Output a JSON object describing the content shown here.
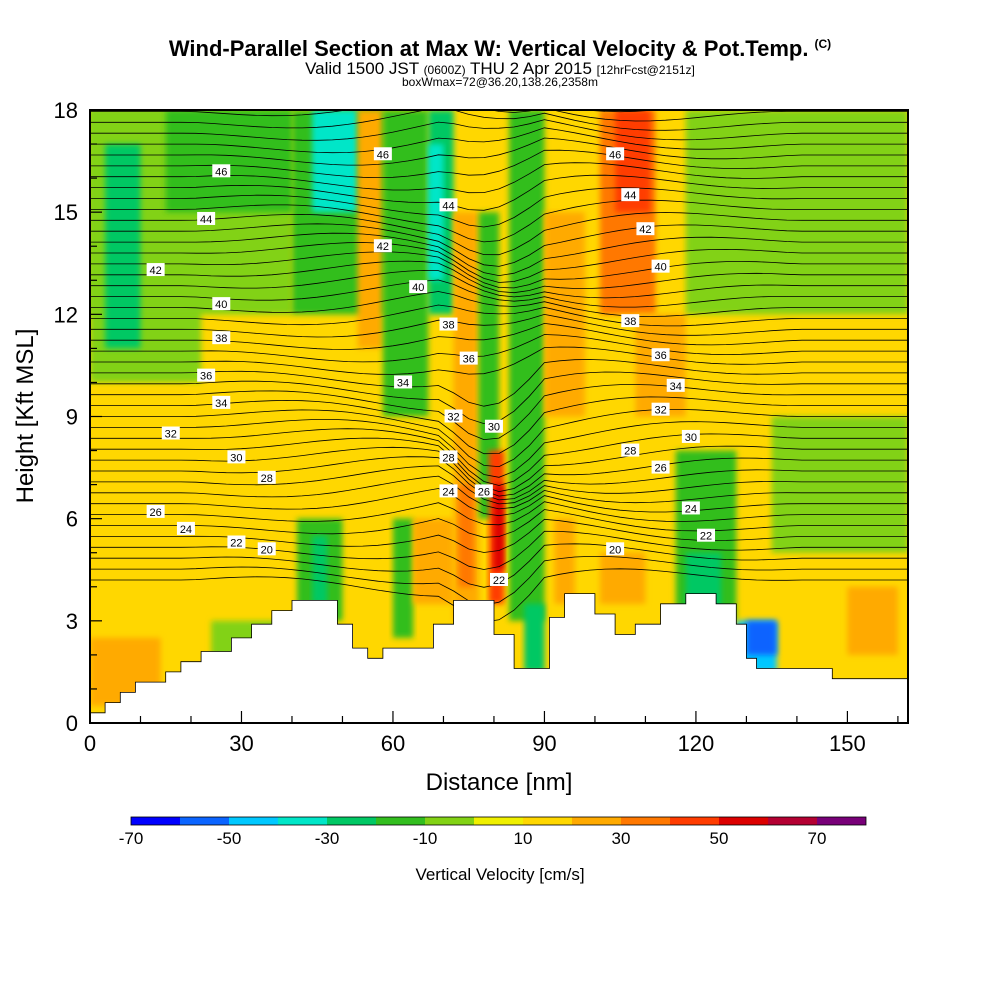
{
  "header": {
    "title": "Wind-Parallel Section at Max W: Vertical Velocity & Pot.Temp.",
    "title_tag": "(C)",
    "valid_time": "Valid 1500 JST",
    "valid_zulu": "(0600Z)",
    "valid_date": "THU 2 Apr 2015",
    "forecast_info": "[12hrFcst@2151z]",
    "box_info": "boxWmax=72@36.20,138.26,2358m"
  },
  "chart_data": {
    "type": "heatmap",
    "xlabel": "Distance [nm]",
    "ylabel": "Height [Kft MSL]",
    "xlim": [
      0,
      162
    ],
    "ylim": [
      0,
      18
    ],
    "x_ticks": [
      0,
      30,
      60,
      90,
      120,
      150
    ],
    "y_ticks": [
      0,
      3,
      6,
      9,
      12,
      15,
      18
    ],
    "colorbar": {
      "title": "Vertical Velocity [cm/s]",
      "tick_labels": [
        -70,
        -50,
        -30,
        -10,
        10,
        30,
        50,
        70
      ],
      "levels": [
        -70,
        -60,
        -50,
        -40,
        -30,
        -20,
        -10,
        0,
        10,
        20,
        30,
        40,
        50,
        60,
        70,
        80
      ],
      "colors": [
        "#0000ff",
        "#0a64ff",
        "#00c8ff",
        "#00e6c8",
        "#00c864",
        "#32be1e",
        "#82d214",
        "#f0f000",
        "#ffd700",
        "#ffaa00",
        "#ff7800",
        "#ff3c00",
        "#dc0000",
        "#b40032",
        "#780078"
      ]
    },
    "w_regions": [
      {
        "x": [
          0,
          162
        ],
        "y": [
          0,
          18
        ],
        "w": 15
      },
      {
        "x": [
          0,
          22
        ],
        "y": [
          10,
          18
        ],
        "w": -5
      },
      {
        "x": [
          0,
          40
        ],
        "y": [
          12,
          18
        ],
        "w": -5
      },
      {
        "x": [
          15,
          40
        ],
        "y": [
          15,
          18
        ],
        "w": -15
      },
      {
        "x": [
          3,
          10
        ],
        "y": [
          11,
          17
        ],
        "w": -25
      },
      {
        "x": [
          0,
          14
        ],
        "y": [
          0.5,
          2.5
        ],
        "w": 25
      },
      {
        "x": [
          24,
          40
        ],
        "y": [
          0,
          3
        ],
        "w": -5
      },
      {
        "x": [
          40,
          58
        ],
        "y": [
          12,
          18
        ],
        "w": -15
      },
      {
        "x": [
          44,
          53
        ],
        "y": [
          15,
          18
        ],
        "w": -35
      },
      {
        "x": [
          41,
          50
        ],
        "y": [
          3,
          6
        ],
        "w": -15
      },
      {
        "x": [
          44,
          47
        ],
        "y": [
          3.5,
          5.5
        ],
        "w": -25
      },
      {
        "x": [
          53,
          58
        ],
        "y": [
          11,
          18
        ],
        "w": 25
      },
      {
        "x": [
          58,
          67
        ],
        "y": [
          9,
          18
        ],
        "w": -15
      },
      {
        "x": [
          60,
          64
        ],
        "y": [
          2.5,
          6
        ],
        "w": -15
      },
      {
        "x": [
          64,
          72
        ],
        "y": [
          3.5,
          6
        ],
        "w": 25
      },
      {
        "x": [
          67,
          72
        ],
        "y": [
          12,
          18
        ],
        "w": -25
      },
      {
        "x": [
          67,
          70
        ],
        "y": [
          13,
          17
        ],
        "w": -35
      },
      {
        "x": [
          72,
          77
        ],
        "y": [
          3,
          15
        ],
        "w": 25
      },
      {
        "x": [
          73,
          76
        ],
        "y": [
          4,
          7
        ],
        "w": 35
      },
      {
        "x": [
          77,
          81
        ],
        "y": [
          6,
          15
        ],
        "w": -15
      },
      {
        "x": [
          79,
          82
        ],
        "y": [
          3.5,
          8
        ],
        "w": 45
      },
      {
        "x": [
          80,
          82
        ],
        "y": [
          4.5,
          7
        ],
        "w": 55
      },
      {
        "x": [
          83,
          90
        ],
        "y": [
          3,
          18
        ],
        "w": -15
      },
      {
        "x": [
          86,
          90
        ],
        "y": [
          1.5,
          3.5
        ],
        "w": -25
      },
      {
        "x": [
          90,
          98
        ],
        "y": [
          9,
          15
        ],
        "w": 25
      },
      {
        "x": [
          92,
          96
        ],
        "y": [
          3.5,
          6
        ],
        "w": 25
      },
      {
        "x": [
          101,
          112
        ],
        "y": [
          12,
          18
        ],
        "w": 35
      },
      {
        "x": [
          104,
          111
        ],
        "y": [
          15,
          18
        ],
        "w": 45
      },
      {
        "x": [
          101,
          110
        ],
        "y": [
          3.5,
          5
        ],
        "w": 25
      },
      {
        "x": [
          108,
          118
        ],
        "y": [
          9,
          12
        ],
        "w": 25
      },
      {
        "x": [
          116,
          128
        ],
        "y": [
          3,
          8
        ],
        "w": -15
      },
      {
        "x": [
          118,
          125
        ],
        "y": [
          3,
          5
        ],
        "w": -25
      },
      {
        "x": [
          128,
          136
        ],
        "y": [
          1.5,
          3
        ],
        "w": -45
      },
      {
        "x": [
          130,
          136
        ],
        "y": [
          2,
          3
        ],
        "w": -55
      },
      {
        "x": [
          118,
          162
        ],
        "y": [
          12,
          18
        ],
        "w": -5
      },
      {
        "x": [
          135,
          162
        ],
        "y": [
          5,
          9
        ],
        "w": -5
      },
      {
        "x": [
          150,
          160
        ],
        "y": [
          2,
          4
        ],
        "w": 25
      }
    ],
    "terrain": [
      {
        "x": 0,
        "top": 0.3
      },
      {
        "x": 3,
        "top": 0.6
      },
      {
        "x": 6,
        "top": 0.9
      },
      {
        "x": 9,
        "top": 1.2
      },
      {
        "x": 15,
        "top": 1.5
      },
      {
        "x": 18,
        "top": 1.8
      },
      {
        "x": 22,
        "top": 2.1
      },
      {
        "x": 28,
        "top": 2.5
      },
      {
        "x": 32,
        "top": 2.9
      },
      {
        "x": 36,
        "top": 3.3
      },
      {
        "x": 40,
        "top": 3.6
      },
      {
        "x": 49,
        "top": 2.9
      },
      {
        "x": 52,
        "top": 2.2
      },
      {
        "x": 55,
        "top": 1.9
      },
      {
        "x": 58,
        "top": 2.2
      },
      {
        "x": 68,
        "top": 2.9
      },
      {
        "x": 72,
        "top": 3.6
      },
      {
        "x": 80,
        "top": 2.6
      },
      {
        "x": 84,
        "top": 1.6
      },
      {
        "x": 91,
        "top": 3.1
      },
      {
        "x": 94,
        "top": 3.8
      },
      {
        "x": 100,
        "top": 3.2
      },
      {
        "x": 104,
        "top": 2.6
      },
      {
        "x": 108,
        "top": 2.9
      },
      {
        "x": 113,
        "top": 3.5
      },
      {
        "x": 118,
        "top": 3.8
      },
      {
        "x": 124,
        "top": 3.5
      },
      {
        "x": 128,
        "top": 2.9
      },
      {
        "x": 130,
        "top": 1.9
      },
      {
        "x": 132,
        "top": 1.6
      },
      {
        "x": 140,
        "top": 1.6
      },
      {
        "x": 147,
        "top": 1.3
      },
      {
        "x": 162,
        "top": 1.3
      }
    ],
    "theta_labels": [
      {
        "text": "46",
        "x": 26,
        "y": 16.2
      },
      {
        "text": "44",
        "x": 23,
        "y": 14.8
      },
      {
        "text": "42",
        "x": 13,
        "y": 13.3
      },
      {
        "text": "40",
        "x": 26,
        "y": 12.3
      },
      {
        "text": "38",
        "x": 26,
        "y": 11.3
      },
      {
        "text": "36",
        "x": 23,
        "y": 10.2
      },
      {
        "text": "34",
        "x": 26,
        "y": 9.4
      },
      {
        "text": "32",
        "x": 16,
        "y": 8.5
      },
      {
        "text": "30",
        "x": 29,
        "y": 7.8
      },
      {
        "text": "28",
        "x": 35,
        "y": 7.2
      },
      {
        "text": "26",
        "x": 13,
        "y": 6.2
      },
      {
        "text": "24",
        "x": 19,
        "y": 5.7
      },
      {
        "text": "22",
        "x": 29,
        "y": 5.3
      },
      {
        "text": "20",
        "x": 35,
        "y": 5.1
      },
      {
        "text": "46",
        "x": 58,
        "y": 16.7
      },
      {
        "text": "42",
        "x": 58,
        "y": 14.0
      },
      {
        "text": "40",
        "x": 65,
        "y": 12.8
      },
      {
        "text": "38",
        "x": 71,
        "y": 11.7
      },
      {
        "text": "36",
        "x": 75,
        "y": 10.7
      },
      {
        "text": "34",
        "x": 62,
        "y": 10.0
      },
      {
        "text": "32",
        "x": 72,
        "y": 9.0
      },
      {
        "text": "30",
        "x": 80,
        "y": 8.7
      },
      {
        "text": "28",
        "x": 71,
        "y": 7.8
      },
      {
        "text": "26",
        "x": 78,
        "y": 6.8
      },
      {
        "text": "24",
        "x": 71,
        "y": 6.8
      },
      {
        "text": "22",
        "x": 81,
        "y": 4.2
      },
      {
        "text": "44",
        "x": 71,
        "y": 15.2
      },
      {
        "text": "46",
        "x": 104,
        "y": 16.7
      },
      {
        "text": "44",
        "x": 107,
        "y": 15.5
      },
      {
        "text": "42",
        "x": 110,
        "y": 14.5
      },
      {
        "text": "40",
        "x": 113,
        "y": 13.4
      },
      {
        "text": "38",
        "x": 107,
        "y": 11.8
      },
      {
        "text": "36",
        "x": 113,
        "y": 10.8
      },
      {
        "text": "34",
        "x": 116,
        "y": 9.9
      },
      {
        "text": "32",
        "x": 113,
        "y": 9.2
      },
      {
        "text": "30",
        "x": 119,
        "y": 8.4
      },
      {
        "text": "28",
        "x": 107,
        "y": 8.0
      },
      {
        "text": "26",
        "x": 113,
        "y": 7.5
      },
      {
        "text": "24",
        "x": 119,
        "y": 6.3
      },
      {
        "text": "22",
        "x": 122,
        "y": 5.5
      },
      {
        "text": "20",
        "x": 104,
        "y": 5.1
      }
    ]
  }
}
